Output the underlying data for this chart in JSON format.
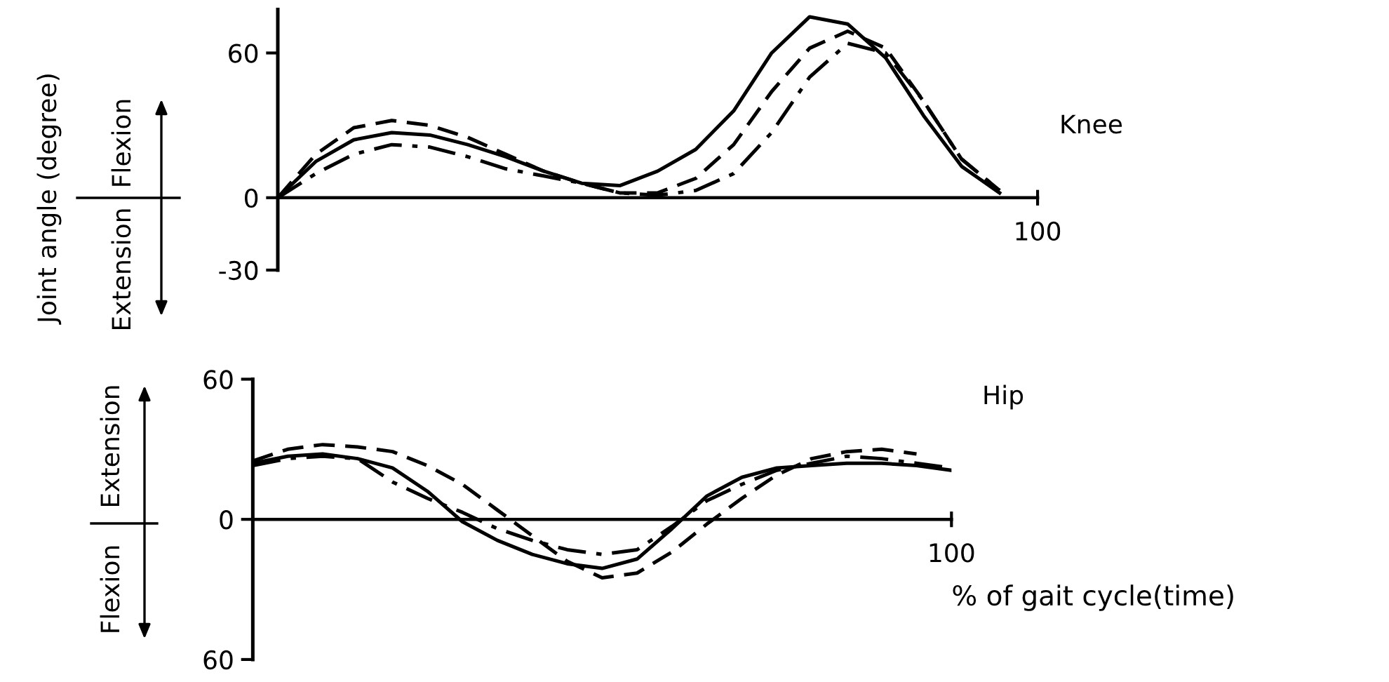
{
  "chart_data": [
    {
      "type": "line",
      "ylabel": "Joint angle (degree)",
      "annotations": [
        "Knee",
        "Flexion",
        "Extension",
        "100"
      ],
      "categories": [
        null,
        null,
        null,
        null,
        null,
        null,
        null,
        null,
        null,
        null,
        null,
        null,
        null,
        null,
        null,
        null,
        null,
        null,
        null,
        null,
        null
      ],
      "ylim": [
        -30,
        78
      ],
      "yticks": [
        -30,
        0,
        60
      ],
      "series": [
        {
          "color": "#000000",
          "line_style": "solid",
          "values": [
            0,
            15,
            24,
            27,
            26,
            22,
            17,
            11,
            6,
            5,
            11,
            20,
            36,
            60,
            75,
            72,
            58,
            34,
            13,
            2,
            null
          ]
        },
        {
          "color": "#000000",
          "line_style": "dashed",
          "values": [
            0,
            18,
            29,
            32,
            30,
            25,
            18,
            11,
            6,
            2,
            2,
            8,
            22,
            44,
            62,
            69,
            62,
            40,
            16,
            3,
            null
          ]
        },
        {
          "color": "#000000",
          "line_style": "dashdot",
          "values": [
            0,
            10,
            18,
            22,
            21,
            17,
            12,
            9,
            6,
            2,
            1,
            3,
            10,
            27,
            50,
            64,
            60,
            40,
            16,
            3,
            null
          ]
        }
      ]
    },
    {
      "type": "line",
      "xlabel": "% of gait cycle(time)",
      "annotations": [
        "Hip",
        "Extension",
        "Flexion",
        "100"
      ],
      "categories": [
        null,
        null,
        null,
        null,
        null,
        null,
        null,
        null,
        null,
        null,
        null,
        null,
        null,
        null,
        null,
        null,
        null,
        null,
        null,
        null,
        null
      ],
      "ylim": [
        -60,
        60
      ],
      "yticks": [
        {
          "value": -60,
          "label": "60"
        },
        0,
        60
      ],
      "series": [
        {
          "color": "#000000",
          "line_style": "solid",
          "values": [
            24,
            27,
            28,
            26,
            22,
            12,
            -1,
            -9,
            -15,
            -19,
            -21,
            -17,
            -4,
            10,
            18,
            22,
            23,
            24,
            24,
            23,
            21
          ]
        },
        {
          "color": "#000000",
          "line_style": "dashed",
          "values": [
            25,
            30,
            32,
            31,
            29,
            23,
            15,
            4,
            -7,
            -18,
            -25,
            -23,
            -14,
            -2,
            9,
            19,
            26,
            29,
            30,
            28,
            null
          ]
        },
        {
          "color": "#000000",
          "line_style": "dashdot",
          "values": [
            23,
            26,
            27,
            26,
            16,
            9,
            3,
            -4,
            -9,
            -13,
            -15,
            -13,
            -3,
            8,
            15,
            21,
            24,
            27,
            26,
            24,
            22
          ]
        }
      ]
    }
  ]
}
